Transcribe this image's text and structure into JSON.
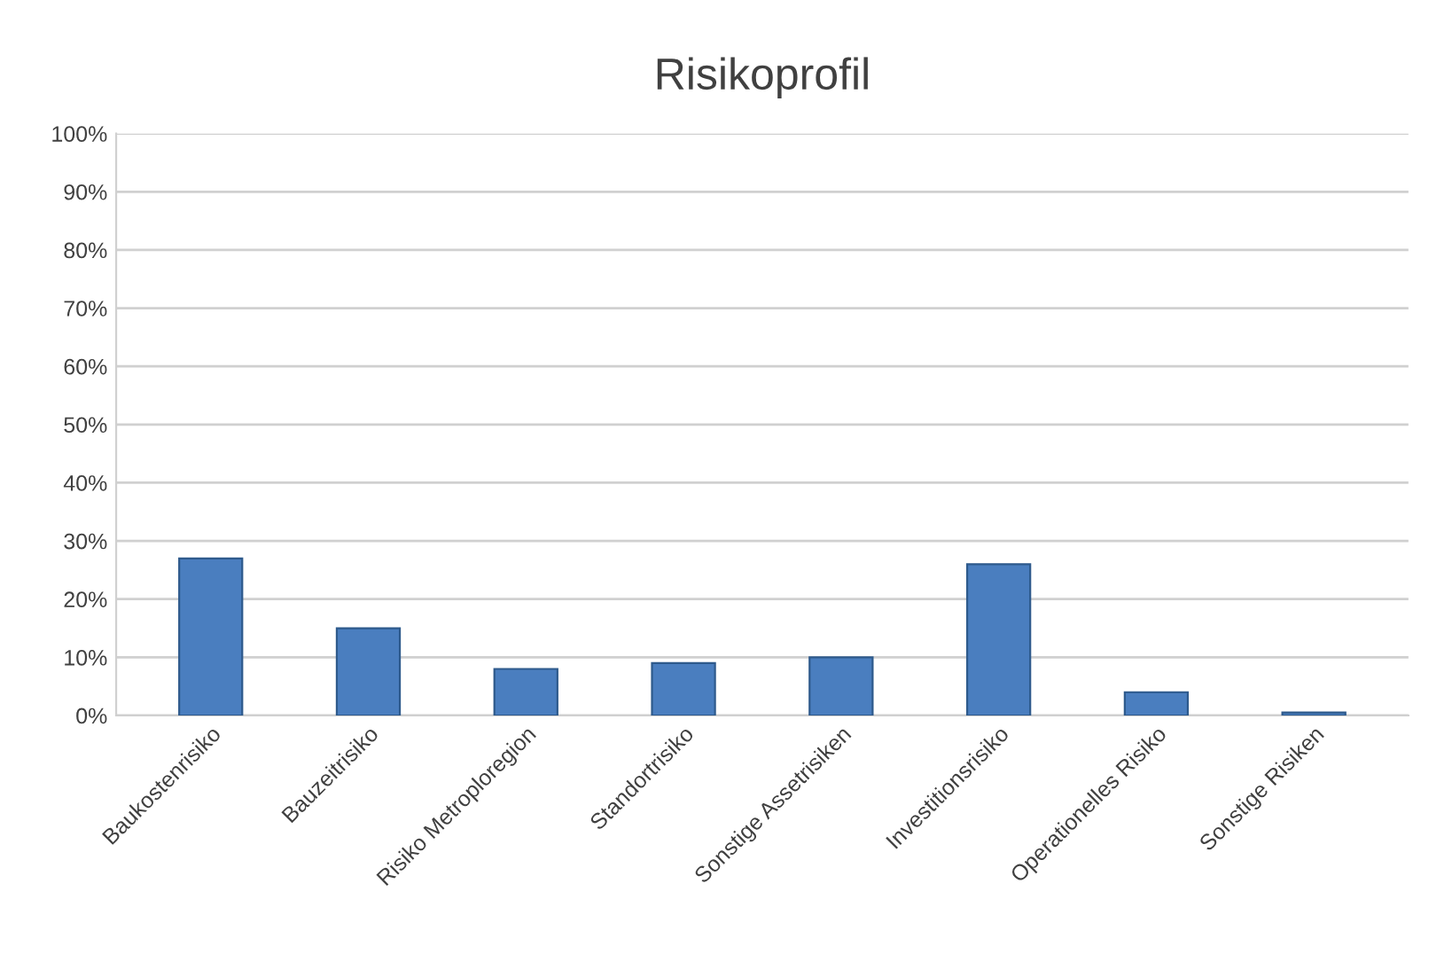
{
  "chart_data": {
    "type": "bar",
    "title": "Risikoprofil",
    "categories": [
      "Baukostenrisiko",
      "Bauzeitrisiko",
      "Risiko Metroploregion",
      "Standortrisiko",
      "Sonstige Assetrisiken",
      "Investitionsrisiko",
      "Operationelles Risiko",
      "Sonstige Risiken"
    ],
    "values": [
      27,
      15,
      8,
      9,
      10,
      26,
      4,
      0.5
    ],
    "color": "#4a7ebf",
    "ylim": [
      0,
      100
    ],
    "yticks": [
      {
        "value": 0,
        "label": "0%"
      },
      {
        "value": 10,
        "label": "10%"
      },
      {
        "value": 20,
        "label": "20%"
      },
      {
        "value": 30,
        "label": "30%"
      },
      {
        "value": 40,
        "label": "40%"
      },
      {
        "value": 50,
        "label": "50%"
      },
      {
        "value": 60,
        "label": "60%"
      },
      {
        "value": 70,
        "label": "70%"
      },
      {
        "value": 80,
        "label": "80%"
      },
      {
        "value": 90,
        "label": "90%"
      },
      {
        "value": 100,
        "label": "100%"
      }
    ],
    "grid": "y"
  }
}
